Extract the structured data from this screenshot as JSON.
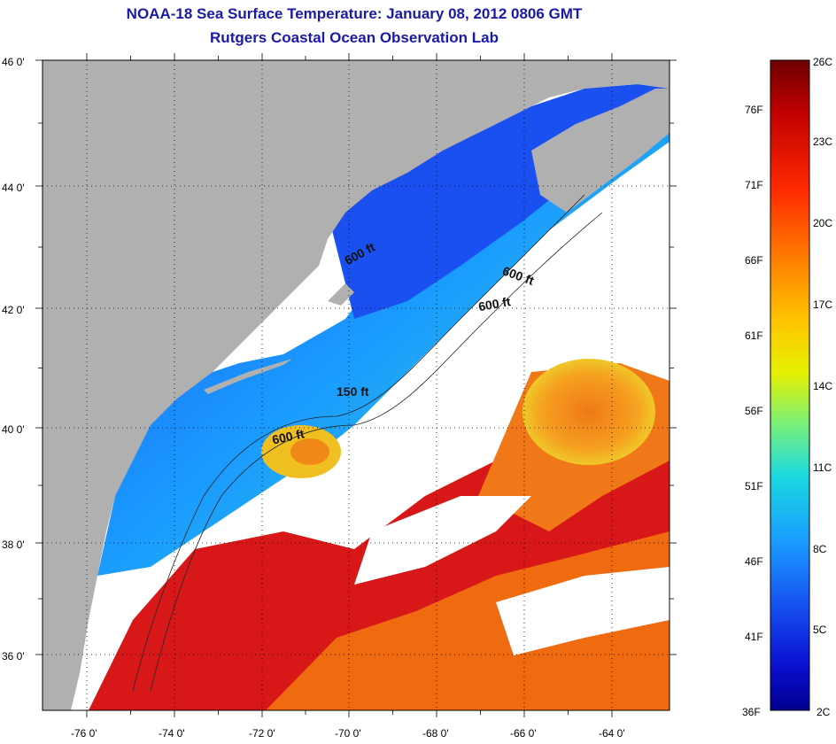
{
  "title": "NOAA-18 Sea Surface Temperature:  January 08, 2012 0806 GMT",
  "subtitle": "Rutgers Coastal Ocean Observation Lab",
  "lat_labels": [
    "46 0'",
    "44 0'",
    "42 0'",
    "40 0'",
    "38 0'",
    "36 0'"
  ],
  "lon_labels": [
    "-76 0'",
    "-74 0'",
    "-72 0'",
    "-70 0'",
    "-68 0'",
    "-66 0'",
    "-64 0'"
  ],
  "colorbar": {
    "fahrenheit": [
      "76F",
      "71F",
      "66F",
      "61F",
      "56F",
      "51F",
      "46F",
      "41F",
      "36F"
    ],
    "celsius": [
      "26C",
      "23C",
      "20C",
      "17C",
      "14C",
      "11C",
      "8C",
      "5C",
      "2C"
    ],
    "colors": [
      "#6e0000",
      "#c00000",
      "#ff2a00",
      "#ff7a00",
      "#ffc400",
      "#e6f000",
      "#7af07a",
      "#1ad8e0",
      "#1a9cff",
      "#1650f0",
      "#0a10d0",
      "#000090"
    ]
  },
  "contour_labels": [
    "600 ft",
    "600 ft",
    "600 ft",
    "150 ft",
    "600 ft"
  ],
  "map_colors": {
    "land": "#b0b0b0",
    "cloud": "#ffffff",
    "cold_water": "#1a50f0",
    "warm_water": "#f06a10",
    "hot_water": "#d01818"
  }
}
